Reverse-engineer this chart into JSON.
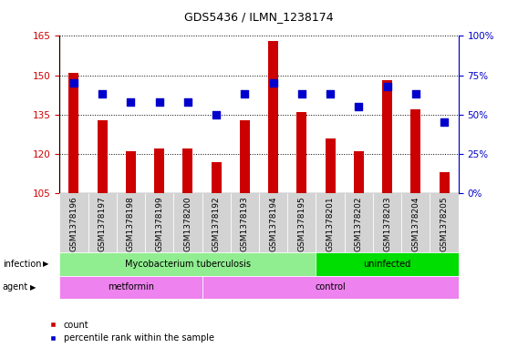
{
  "title": "GDS5436 / ILMN_1238174",
  "samples": [
    "GSM1378196",
    "GSM1378197",
    "GSM1378198",
    "GSM1378199",
    "GSM1378200",
    "GSM1378192",
    "GSM1378193",
    "GSM1378194",
    "GSM1378195",
    "GSM1378201",
    "GSM1378202",
    "GSM1378203",
    "GSM1378204",
    "GSM1378205"
  ],
  "counts": [
    151,
    133,
    121,
    122,
    122,
    117,
    133,
    163,
    136,
    126,
    121,
    148,
    137,
    113
  ],
  "percentiles": [
    70,
    63,
    58,
    58,
    58,
    50,
    63,
    70,
    63,
    63,
    55,
    68,
    63,
    45
  ],
  "ylim_left": [
    105,
    165
  ],
  "ylim_right": [
    0,
    100
  ],
  "yticks_left": [
    105,
    120,
    135,
    150,
    165
  ],
  "yticks_right": [
    0,
    25,
    50,
    75,
    100
  ],
  "bar_color": "#cc0000",
  "dot_color": "#0000cc",
  "infection_groups": [
    {
      "label": "Mycobacterium tuberculosis",
      "start": 0,
      "end": 8,
      "color": "#90ee90"
    },
    {
      "label": "uninfected",
      "start": 9,
      "end": 13,
      "color": "#00dd00"
    }
  ],
  "agent_groups": [
    {
      "label": "metformin",
      "start": 0,
      "end": 4,
      "color": "#ee82ee"
    },
    {
      "label": "control",
      "start": 5,
      "end": 13,
      "color": "#ee82ee"
    }
  ],
  "ylabel_left_color": "#cc0000",
  "ylabel_right_color": "#0000cc",
  "bar_width": 0.35,
  "dot_size": 30,
  "tick_fontsize": 7.5,
  "bar_fontsize": 6.5
}
